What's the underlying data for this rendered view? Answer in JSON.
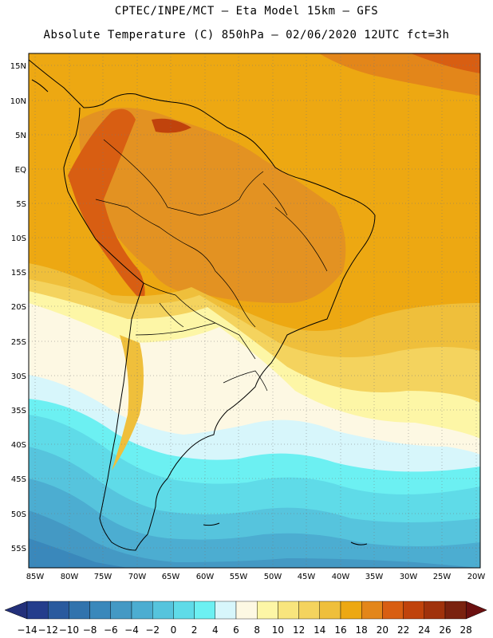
{
  "header": {
    "title_line1": "CPTEC/INPE/MCT –  Eta Model 15km – GFS",
    "title_line2": "Absolute Temperature (C) 850hPa – 02/06/2020 12UTC fct=3h"
  },
  "map": {
    "lat_labels": [
      "15N",
      "10N",
      "5N",
      "EQ",
      "5S",
      "10S",
      "15S",
      "20S",
      "25S",
      "30S",
      "35S",
      "40S",
      "45S",
      "50S",
      "55S"
    ],
    "lon_labels": [
      "85W",
      "80W",
      "75W",
      "70W",
      "65W",
      "60W",
      "55W",
      "50W",
      "45W",
      "40W",
      "35W",
      "30W",
      "25W",
      "20W"
    ]
  },
  "colorbar": {
    "labels": [
      "-14",
      "-12",
      "-10",
      "-8",
      "-6",
      "-4",
      "-2",
      "0",
      "2",
      "4",
      "6",
      "8",
      "10",
      "12",
      "14",
      "16",
      "18",
      "20",
      "22",
      "24",
      "26",
      "28"
    ],
    "low_cap_color": "#23307a",
    "high_cap_color": "#6b1010",
    "colors": [
      "#243d8c",
      "#2a5a9e",
      "#3173ad",
      "#3a88bb",
      "#4499c4",
      "#4cadd1",
      "#56c4dd",
      "#5fdbe8",
      "#6cf0f2",
      "#d7f6fb",
      "#fdf8e3",
      "#fdf6a6",
      "#f8e57d",
      "#f4d35e",
      "#efbf3b",
      "#eda812",
      "#e3861a",
      "#d85e12",
      "#c0430c",
      "#a0320c",
      "#7a220f"
    ]
  }
}
